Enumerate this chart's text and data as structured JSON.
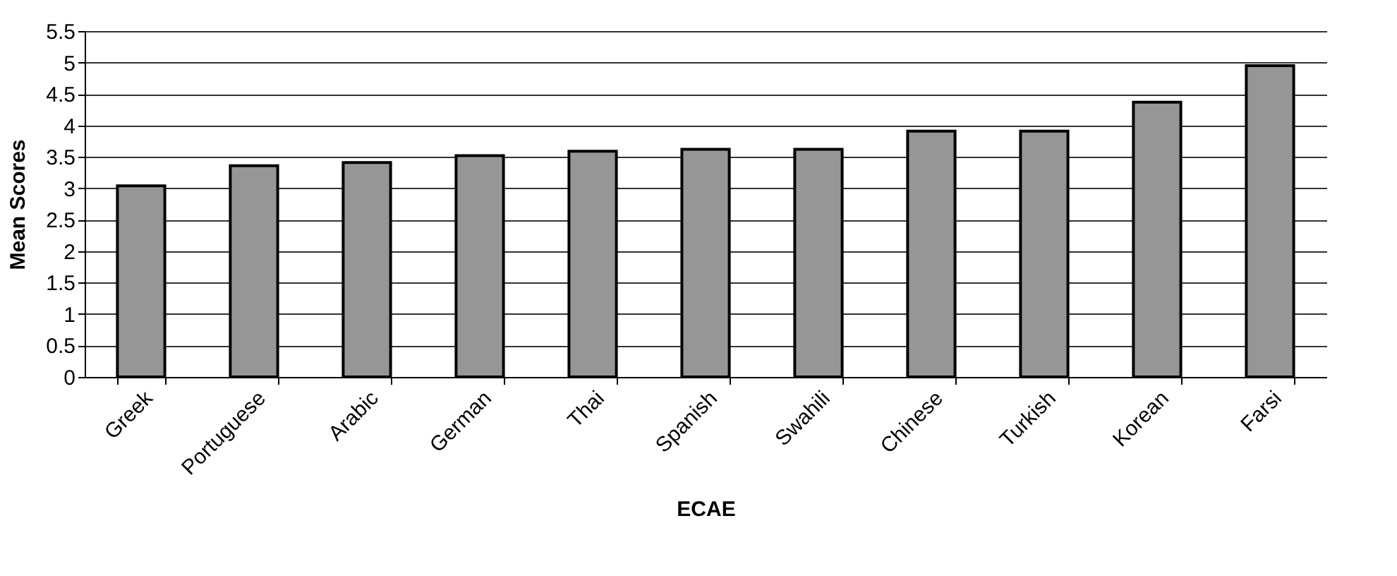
{
  "chart_data": {
    "type": "bar",
    "xlabel": "ECAE",
    "ylabel": "Mean Scores",
    "categories": [
      "Greek",
      "Portuguese",
      "Arabic",
      "German",
      "Thai",
      "Spanish",
      "Swahili",
      "Chinese",
      "Turkish",
      "Korean",
      "Farsi"
    ],
    "values": [
      3.04,
      3.36,
      3.41,
      3.52,
      3.59,
      3.62,
      3.62,
      3.91,
      3.91,
      4.37,
      4.95
    ],
    "color": "#969696",
    "ylim": [
      0,
      5.5
    ],
    "yticks": [
      0,
      0.5,
      1,
      1.5,
      2,
      2.5,
      3,
      3.5,
      4,
      4.5,
      5,
      5.5
    ],
    "grid": "y"
  }
}
